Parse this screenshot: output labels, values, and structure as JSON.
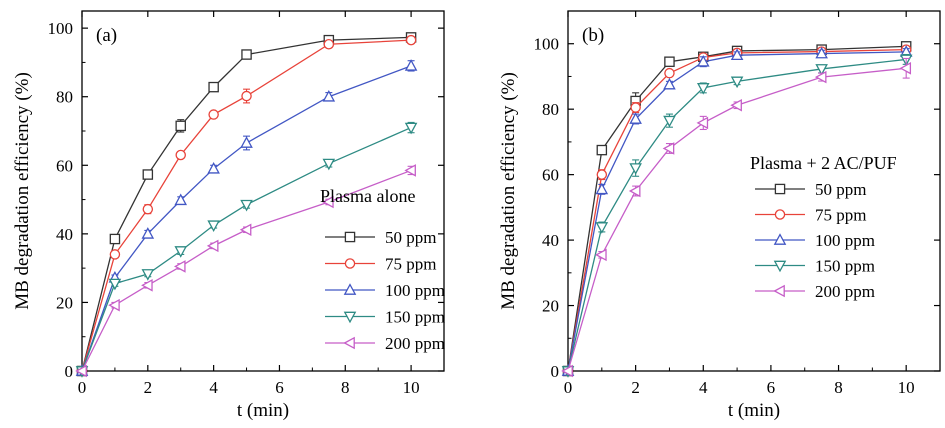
{
  "chart_data": [
    {
      "type": "line",
      "panel_label": "(a)",
      "xlabel": "t (min)",
      "ylabel": "MB degradation efficiency (%)",
      "xlim": [
        0,
        11
      ],
      "ylim": [
        0,
        105
      ],
      "x_ticks": [
        "0",
        "2",
        "4",
        "6",
        "8",
        "10"
      ],
      "y_ticks": [
        "0",
        "20",
        "40",
        "60",
        "80",
        "100"
      ],
      "x": [
        0,
        1,
        2,
        3,
        4,
        5,
        7.5,
        10
      ],
      "legend_title": "Plasma alone",
      "legend_position": "bottom-right",
      "series": [
        {
          "name": "50 ppm",
          "color": "#333333",
          "marker": "square",
          "values": [
            0,
            38.5,
            57.3,
            71.5,
            82.8,
            92.3,
            96.5,
            97.3
          ],
          "errors": [
            0,
            0.8,
            1.0,
            1.8,
            0.8,
            0.8,
            0.8,
            0.8
          ]
        },
        {
          "name": "75 ppm",
          "color": "#e8433a",
          "marker": "circle",
          "values": [
            0,
            34.0,
            47.2,
            63.0,
            74.8,
            80.2,
            95.3,
            96.5
          ],
          "errors": [
            0,
            1.0,
            1.3,
            0.8,
            0.8,
            2.0,
            0.8,
            0.8
          ]
        },
        {
          "name": "100 ppm",
          "color": "#4257c4",
          "marker": "triangle-up",
          "values": [
            0,
            27.2,
            40.0,
            49.8,
            59.0,
            66.5,
            80.0,
            89.0
          ],
          "errors": [
            0,
            0.8,
            1.0,
            1.0,
            1.0,
            2.0,
            1.2,
            1.5
          ]
        },
        {
          "name": "150 ppm",
          "color": "#2e8b84",
          "marker": "triangle-down",
          "values": [
            0,
            25.5,
            28.3,
            35.0,
            42.5,
            48.5,
            60.5,
            71.0
          ],
          "errors": [
            0,
            0.8,
            0.8,
            1.0,
            0.8,
            1.0,
            1.0,
            1.5
          ]
        },
        {
          "name": "200 ppm",
          "color": "#c65ec8",
          "marker": "triangle-left",
          "values": [
            0,
            19.2,
            25.0,
            30.5,
            36.5,
            41.2,
            49.3,
            58.5
          ],
          "errors": [
            0,
            0.8,
            0.8,
            0.8,
            0.8,
            0.8,
            0.8,
            1.2
          ]
        }
      ]
    },
    {
      "type": "line",
      "panel_label": "(b)",
      "xlabel": "t (min)",
      "ylabel": "MB degradation efficiency (%)",
      "xlim": [
        0,
        11
      ],
      "ylim": [
        0,
        110
      ],
      "x_ticks": [
        "0",
        "2",
        "4",
        "6",
        "8",
        "10"
      ],
      "y_ticks": [
        "0",
        "20",
        "40",
        "60",
        "80",
        "100"
      ],
      "x": [
        0,
        1,
        2,
        3,
        4,
        5,
        7.5,
        10
      ],
      "legend_title": "Plasma + 2 AC/PUF",
      "legend_position": "center-right",
      "series": [
        {
          "name": "50 ppm",
          "color": "#333333",
          "marker": "square",
          "values": [
            0,
            67.5,
            82.5,
            94.5,
            96.0,
            97.8,
            98.2,
            99.2
          ],
          "errors": [
            0,
            0.8,
            2.5,
            0.8,
            0.8,
            1.0,
            0.8,
            0.8
          ]
        },
        {
          "name": "75 ppm",
          "color": "#e8433a",
          "marker": "circle",
          "values": [
            0,
            60.0,
            80.5,
            91.0,
            95.8,
            97.2,
            97.6,
            98.2
          ],
          "errors": [
            0,
            1.5,
            1.5,
            0.8,
            1.0,
            1.0,
            0.8,
            0.8
          ]
        },
        {
          "name": "100 ppm",
          "color": "#4257c4",
          "marker": "triangle-up",
          "values": [
            0,
            55.5,
            77.0,
            87.5,
            94.5,
            96.5,
            97.0,
            97.5
          ],
          "errors": [
            0,
            1.5,
            1.5,
            1.0,
            1.5,
            1.0,
            1.0,
            1.0
          ]
        },
        {
          "name": "150 ppm",
          "color": "#2e8b84",
          "marker": "triangle-down",
          "values": [
            0,
            44.0,
            62.0,
            76.5,
            86.5,
            88.5,
            92.3,
            95.2
          ],
          "errors": [
            0,
            1.5,
            2.5,
            2.0,
            1.5,
            1.0,
            1.2,
            1.5
          ]
        },
        {
          "name": "200 ppm",
          "color": "#c65ec8",
          "marker": "triangle-left",
          "values": [
            0,
            35.5,
            55.0,
            68.0,
            75.8,
            81.2,
            89.8,
            92.5
          ],
          "errors": [
            0,
            1.0,
            1.5,
            1.5,
            2.0,
            1.0,
            1.2,
            3.0
          ]
        }
      ]
    }
  ]
}
